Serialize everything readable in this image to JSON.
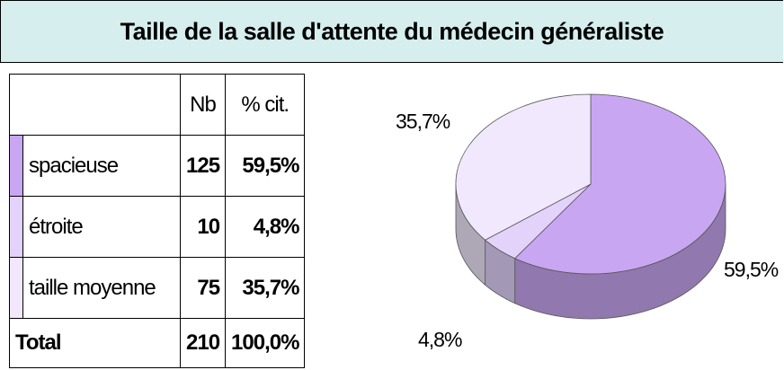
{
  "title": "Taille de la salle d'attente du médecin généraliste",
  "table": {
    "header": [
      "Nb",
      "% cit."
    ],
    "rows": [
      [
        "spacieuse",
        "125",
        "59,5%"
      ],
      [
        "étroite",
        "10",
        "4,8%"
      ],
      [
        "taille moyenne",
        "75",
        "35,7%"
      ]
    ],
    "total": [
      "Total",
      "210",
      "100,0%"
    ]
  },
  "chart_data": {
    "type": "pie",
    "values": [
      59.5,
      4.8,
      35.7
    ],
    "value_labels": [
      "59,5%",
      "4,8%",
      "35,7%"
    ],
    "colors": [
      "#c9a6f2",
      "#e3d3fb",
      "#f1e8fd"
    ]
  }
}
